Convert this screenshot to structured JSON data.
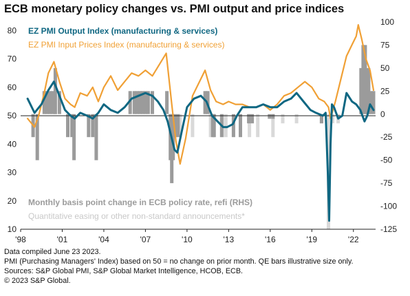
{
  "title": "ECB monetary policy changes vs. PMI output and price indices",
  "footer": {
    "compiled": "Data compiled June 23 2023.",
    "note": "PMI (Purchasing Managers' Index) based on 50 = no change on prior month. QE bars illustrative size only.",
    "sources": "Sources: S&P Global PMI, S&P Global Market Intelligence, HCOB, ECB.",
    "copyright": "© 2023 S&P Global."
  },
  "chart_data": {
    "type": "line",
    "left_axis": {
      "ticks": [
        10,
        20,
        30,
        40,
        50,
        60,
        70,
        80
      ],
      "ylim": [
        10,
        83
      ],
      "reference_line": 50
    },
    "right_axis": {
      "ticks": [
        100,
        75,
        50,
        25,
        0,
        -25,
        -50,
        -75,
        -100,
        -125
      ],
      "tick_labels": [
        "100",
        "75",
        "50",
        "25",
        "0",
        "-25",
        "-50",
        "-75",
        "-100",
        "-125"
      ],
      "ylim": [
        -125,
        100
      ]
    },
    "x_axis": {
      "ticks": [
        1998,
        2001,
        2004,
        2007,
        2010,
        2013,
        2016,
        2019,
        2022
      ],
      "tick_labels": [
        "'98",
        "'01",
        "'04",
        "'07",
        "'10",
        "'13",
        "'16",
        "'19",
        "'22"
      ],
      "xlim": [
        1998,
        2023.6
      ]
    },
    "series": [
      {
        "name": "EZ PMI Output Index (manufacturing & services)",
        "axis": "left",
        "color": "#0f6782",
        "x": [
          1998.5,
          1999.0,
          1999.5,
          2000.0,
          2000.4,
          2000.8,
          2001.2,
          2001.6,
          2001.9,
          2002.3,
          2002.8,
          2003.2,
          2003.6,
          2004.0,
          2004.5,
          2005.0,
          2005.5,
          2006.0,
          2006.5,
          2007.0,
          2007.5,
          2007.9,
          2008.3,
          2008.6,
          2008.9,
          2009.1,
          2009.3,
          2009.6,
          2010.0,
          2010.5,
          2011.0,
          2011.4,
          2011.8,
          2012.2,
          2012.6,
          2012.9,
          2013.3,
          2013.6,
          2014.0,
          2014.5,
          2015.0,
          2015.5,
          2016.0,
          2016.5,
          2017.0,
          2017.5,
          2017.9,
          2018.4,
          2018.9,
          2019.3,
          2019.8,
          2020.0,
          2020.15,
          2020.25,
          2020.35,
          2020.45,
          2020.6,
          2020.9,
          2021.2,
          2021.5,
          2021.9,
          2022.2,
          2022.5,
          2022.8,
          2023.0,
          2023.2,
          2023.45
        ],
        "y": [
          56,
          51,
          54,
          59,
          62,
          57,
          52,
          50,
          49,
          51,
          50,
          49,
          51,
          54,
          52,
          51,
          53,
          56,
          57,
          58,
          57,
          55,
          52,
          48,
          42,
          38,
          37,
          44,
          53,
          56,
          57,
          55,
          50,
          48,
          46,
          46,
          47,
          50,
          53,
          53,
          53,
          54,
          53,
          53,
          55,
          56,
          58,
          55,
          52,
          51,
          50,
          51,
          30,
          13,
          40,
          54,
          53,
          49,
          50,
          58,
          55,
          54,
          52,
          48,
          50,
          54,
          52
        ]
      },
      {
        "name": "EZ PMI Input Prices Index (manufacturing & services)",
        "axis": "left",
        "color": "#f0a035",
        "x": [
          1998.5,
          1999.0,
          1999.3,
          1999.7,
          2000.0,
          2000.4,
          2000.8,
          2001.2,
          2001.6,
          2001.9,
          2002.3,
          2002.8,
          2003.2,
          2003.6,
          2004.0,
          2004.5,
          2005.0,
          2005.5,
          2006.0,
          2006.5,
          2007.0,
          2007.5,
          2008.0,
          2008.5,
          2008.9,
          2009.2,
          2009.5,
          2009.9,
          2010.4,
          2010.9,
          2011.3,
          2011.7,
          2012.1,
          2012.6,
          2013.0,
          2013.5,
          2014.0,
          2014.5,
          2015.0,
          2015.5,
          2016.0,
          2016.5,
          2017.0,
          2017.5,
          2018.0,
          2018.5,
          2019.0,
          2019.5,
          2019.9,
          2020.2,
          2020.35,
          2020.7,
          2021.0,
          2021.5,
          2021.9,
          2022.2,
          2022.35,
          2022.6,
          2022.9,
          2023.2,
          2023.45
        ],
        "y": [
          49,
          46,
          50,
          58,
          65,
          69,
          62,
          56,
          54,
          53,
          58,
          57,
          60,
          55,
          60,
          64,
          59,
          62,
          65,
          64,
          66,
          64,
          68,
          72,
          54,
          41,
          33,
          42,
          57,
          62,
          66,
          59,
          55,
          54,
          55,
          54,
          54,
          53,
          53,
          54,
          52,
          54,
          57,
          58,
          60,
          62,
          60,
          56,
          55,
          53,
          49,
          55,
          61,
          71,
          75,
          78,
          82,
          77,
          70,
          66,
          59
        ]
      }
    ],
    "bars": [
      {
        "name": "Monthly basis point change in ECB policy rate, refi (RHS)",
        "axis": "right",
        "color": "#9b9b9b",
        "x": [
          1998.9,
          1999.2,
          1999.7,
          1999.9,
          2000.1,
          2000.3,
          2000.5,
          2000.8,
          2001.4,
          2001.7,
          2001.85,
          2002.9,
          2003.2,
          2003.45,
          2005.9,
          2006.2,
          2006.4,
          2006.6,
          2006.8,
          2007.0,
          2007.2,
          2007.5,
          2008.55,
          2008.8,
          2008.9,
          2009.0,
          2009.15,
          2009.35,
          2011.3,
          2011.5,
          2011.85,
          2011.95,
          2012.5,
          2013.35,
          2013.85,
          2014.45,
          2014.7,
          2015.95,
          2016.2,
          2019.7,
          2022.55,
          2022.7,
          2022.85,
          2022.97,
          2023.1,
          2023.25,
          2023.45
        ],
        "y": [
          -25,
          -50,
          25,
          25,
          25,
          25,
          50,
          25,
          -25,
          -25,
          -50,
          -25,
          -25,
          -50,
          25,
          25,
          25,
          25,
          25,
          25,
          25,
          25,
          25,
          -50,
          -75,
          -50,
          -25,
          -25,
          25,
          25,
          -25,
          -25,
          -25,
          -25,
          -25,
          -10,
          -10,
          -5,
          -5,
          -10,
          50,
          75,
          75,
          50,
          50,
          25,
          25
        ]
      },
      {
        "name": "Quantitative easing or other non-standard announcements*",
        "axis": "right",
        "color": "#d9d9d9",
        "x": [
          2009.5,
          2010.4,
          2011.7,
          2011.95,
          2012.55,
          2012.8,
          2014.5,
          2015.1,
          2016.2,
          2016.9,
          2017.9,
          2019.7,
          2020.2,
          2020.5,
          2020.9
        ],
        "y": [
          -25,
          -25,
          -25,
          -25,
          -25,
          -25,
          -25,
          -25,
          -25,
          -10,
          -10,
          -10,
          -125,
          -10,
          -10
        ]
      }
    ],
    "legend_placement": "inside top-left (lines) and bottom-left (bars)",
    "grid": false
  }
}
